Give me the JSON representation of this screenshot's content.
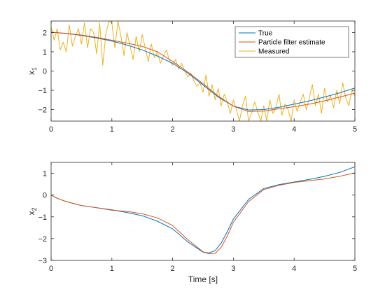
{
  "colors": {
    "true": "#0072BD",
    "estimate": "#D95319",
    "measured": "#EDB120",
    "axis": "#262626"
  },
  "chart_data": [
    {
      "type": "line",
      "title": "",
      "xlabel": "",
      "ylabel": "x",
      "ylabel_sub": "1",
      "xlim": [
        0,
        5
      ],
      "ylim": [
        -2.6,
        2.6
      ],
      "xticks": [
        0,
        1,
        2,
        3,
        4,
        5
      ],
      "yticks": [
        -2,
        -1,
        0,
        1,
        2
      ],
      "grid": false,
      "legend": {
        "location": "top-right",
        "entries": [
          "True",
          "Particle filter estimate",
          "Measured"
        ]
      },
      "series": [
        {
          "name": "True",
          "color_key": "true",
          "x": [
            0,
            0.25,
            0.5,
            0.75,
            1.0,
            1.25,
            1.5,
            1.75,
            2.0,
            2.25,
            2.5,
            2.75,
            3.0,
            3.25,
            3.5,
            3.75,
            4.0,
            4.25,
            4.5,
            4.75,
            5.0
          ],
          "y": [
            2.02,
            1.95,
            1.85,
            1.72,
            1.56,
            1.35,
            1.1,
            0.78,
            0.4,
            -0.1,
            -0.72,
            -1.35,
            -1.82,
            -2.02,
            -2.0,
            -1.88,
            -1.72,
            -1.55,
            -1.35,
            -1.13,
            -0.88
          ]
        },
        {
          "name": "Particle filter estimate",
          "color_key": "estimate",
          "x": [
            0,
            0.25,
            0.5,
            0.75,
            1.0,
            1.25,
            1.5,
            1.75,
            2.0,
            2.25,
            2.5,
            2.75,
            3.0,
            3.25,
            3.5,
            3.75,
            4.0,
            4.25,
            4.5,
            4.75,
            5.0
          ],
          "y": [
            2.02,
            1.96,
            1.87,
            1.75,
            1.6,
            1.45,
            1.28,
            1.0,
            0.5,
            -0.05,
            -0.65,
            -1.3,
            -1.82,
            -2.1,
            -2.08,
            -1.96,
            -1.85,
            -1.72,
            -1.55,
            -1.35,
            -1.15
          ]
        },
        {
          "name": "Measured",
          "color_key": "measured",
          "x": [
            0,
            0.05,
            0.1,
            0.15,
            0.2,
            0.25,
            0.3,
            0.35,
            0.4,
            0.45,
            0.5,
            0.55,
            0.6,
            0.65,
            0.7,
            0.75,
            0.8,
            0.85,
            0.9,
            0.95,
            1.0,
            1.05,
            1.1,
            1.15,
            1.2,
            1.25,
            1.3,
            1.35,
            1.4,
            1.45,
            1.5,
            1.55,
            1.6,
            1.65,
            1.7,
            1.75,
            1.8,
            1.85,
            1.9,
            1.95,
            2.0,
            2.05,
            2.1,
            2.15,
            2.2,
            2.25,
            2.3,
            2.35,
            2.4,
            2.45,
            2.5,
            2.55,
            2.6,
            2.65,
            2.7,
            2.75,
            2.8,
            2.85,
            2.9,
            2.95,
            3.0,
            3.05,
            3.1,
            3.15,
            3.2,
            3.25,
            3.3,
            3.35,
            3.4,
            3.45,
            3.5,
            3.55,
            3.6,
            3.65,
            3.7,
            3.75,
            3.8,
            3.85,
            3.9,
            3.95,
            4.0,
            4.05,
            4.1,
            4.15,
            4.2,
            4.25,
            4.3,
            4.35,
            4.4,
            4.45,
            4.5,
            4.55,
            4.6,
            4.65,
            4.7,
            4.75,
            4.8,
            4.85,
            4.9,
            4.95,
            5.0
          ],
          "y": [
            2.3,
            1.6,
            2.2,
            1.1,
            1.5,
            1.0,
            2.4,
            1.3,
            1.8,
            2.2,
            1.4,
            2.5,
            1.2,
            2.2,
            2.0,
            0.9,
            2.5,
            0.3,
            1.9,
            2.6,
            2.5,
            1.2,
            2.6,
            1.8,
            0.8,
            2.0,
            1.3,
            0.6,
            1.8,
            1.0,
            1.9,
            1.2,
            0.5,
            1.4,
            0.7,
            1.0,
            0.4,
            0.8,
            1.1,
            0.5,
            0.3,
            0.6,
            0.1,
            0.4,
            0.0,
            -0.3,
            -0.1,
            -0.5,
            -0.8,
            -0.6,
            -1.1,
            -0.2,
            -1.3,
            -0.7,
            -1.5,
            -0.9,
            -1.8,
            -1.2,
            -1.6,
            -2.2,
            -1.5,
            -2.0,
            -2.6,
            -1.8,
            -1.3,
            -2.6,
            -2.2,
            -1.6,
            -2.1,
            -2.6,
            -1.8,
            -2.6,
            -1.5,
            -2.2,
            -1.9,
            -1.2,
            -2.3,
            -1.7,
            -2.0,
            -2.6,
            -1.5,
            -2.1,
            -1.6,
            -1.2,
            -2.0,
            -1.4,
            -0.7,
            -1.8,
            -1.2,
            -2.2,
            -0.9,
            -1.6,
            -1.3,
            -1.9,
            -1.0,
            -1.7,
            -0.6,
            -1.4,
            -1.8,
            -1.0,
            -1.3
          ]
        }
      ]
    },
    {
      "type": "line",
      "title": "",
      "xlabel": "Time [s]",
      "ylabel": "x",
      "ylabel_sub": "2",
      "xlim": [
        0,
        5
      ],
      "ylim": [
        -3,
        1.5
      ],
      "xticks": [
        0,
        1,
        2,
        3,
        4,
        5
      ],
      "yticks": [
        -3,
        -2,
        -1,
        0,
        1
      ],
      "grid": false,
      "series": [
        {
          "name": "True",
          "color_key": "true",
          "x": [
            0,
            0.1,
            0.25,
            0.5,
            0.75,
            1.0,
            1.25,
            1.5,
            1.75,
            2.0,
            2.25,
            2.5,
            2.6,
            2.7,
            2.8,
            2.9,
            3.0,
            3.25,
            3.5,
            3.75,
            4.0,
            4.25,
            4.5,
            4.75,
            5.0
          ],
          "y": [
            0.0,
            -0.15,
            -0.3,
            -0.48,
            -0.58,
            -0.68,
            -0.8,
            -0.95,
            -1.2,
            -1.55,
            -2.15,
            -2.62,
            -2.66,
            -2.55,
            -2.2,
            -1.68,
            -1.1,
            -0.2,
            0.3,
            0.48,
            0.6,
            0.72,
            0.86,
            1.04,
            1.3
          ]
        },
        {
          "name": "Particle filter estimate",
          "color_key": "estimate",
          "x": [
            0,
            0.1,
            0.25,
            0.5,
            0.75,
            1.0,
            1.25,
            1.5,
            1.75,
            2.0,
            2.25,
            2.5,
            2.6,
            2.7,
            2.8,
            2.9,
            3.0,
            3.25,
            3.5,
            3.75,
            4.0,
            4.25,
            4.5,
            4.75,
            5.0
          ],
          "y": [
            0.0,
            -0.15,
            -0.3,
            -0.48,
            -0.58,
            -0.7,
            -0.75,
            -0.86,
            -1.05,
            -1.4,
            -2.05,
            -2.6,
            -2.7,
            -2.68,
            -2.4,
            -1.88,
            -1.25,
            -0.3,
            0.25,
            0.45,
            0.58,
            0.66,
            0.74,
            0.86,
            1.02
          ]
        }
      ]
    }
  ]
}
